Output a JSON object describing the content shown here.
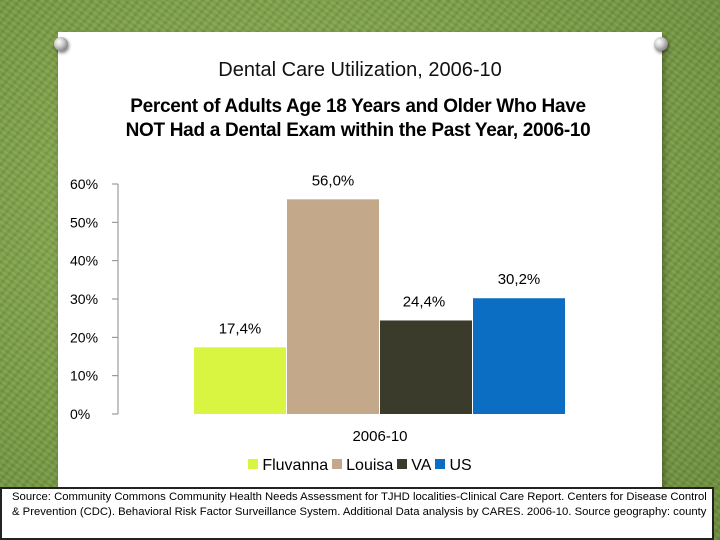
{
  "slide": {
    "title": "Dental Care Utilization, 2006-10",
    "source": "Source: Community Commons Community Health Needs Assessment for TJHD localities-Clinical Care Report. Centers for Disease Control & Prevention (CDC). Behavioral Risk Factor Surveillance System. Additional Data analysis by CARES. 2006-10. Source geography: county"
  },
  "chart_data": {
    "type": "bar",
    "title": "Percent of Adults Age 18 Years and Older Who Have NOT Had a Dental Exam within the Past Year, 2006-10",
    "categories": [
      "2006-10"
    ],
    "series": [
      {
        "name": "Fluvanna",
        "values": [
          17.4
        ],
        "label": "17,4%",
        "color": "#d9f542"
      },
      {
        "name": "Louisa",
        "values": [
          56.0
        ],
        "label": "56,0%",
        "color": "#c4a88a"
      },
      {
        "name": "VA",
        "values": [
          24.4
        ],
        "label": "24,4%",
        "color": "#3b3b2c"
      },
      {
        "name": "US",
        "values": [
          30.2
        ],
        "label": "30,2%",
        "color": "#0b6ec2"
      }
    ],
    "yticks": [
      "0%",
      "10%",
      "20%",
      "30%",
      "40%",
      "50%",
      "60%"
    ],
    "ylim": [
      0,
      60
    ],
    "xlabel": "",
    "ylabel": "",
    "legend": "bottom"
  }
}
